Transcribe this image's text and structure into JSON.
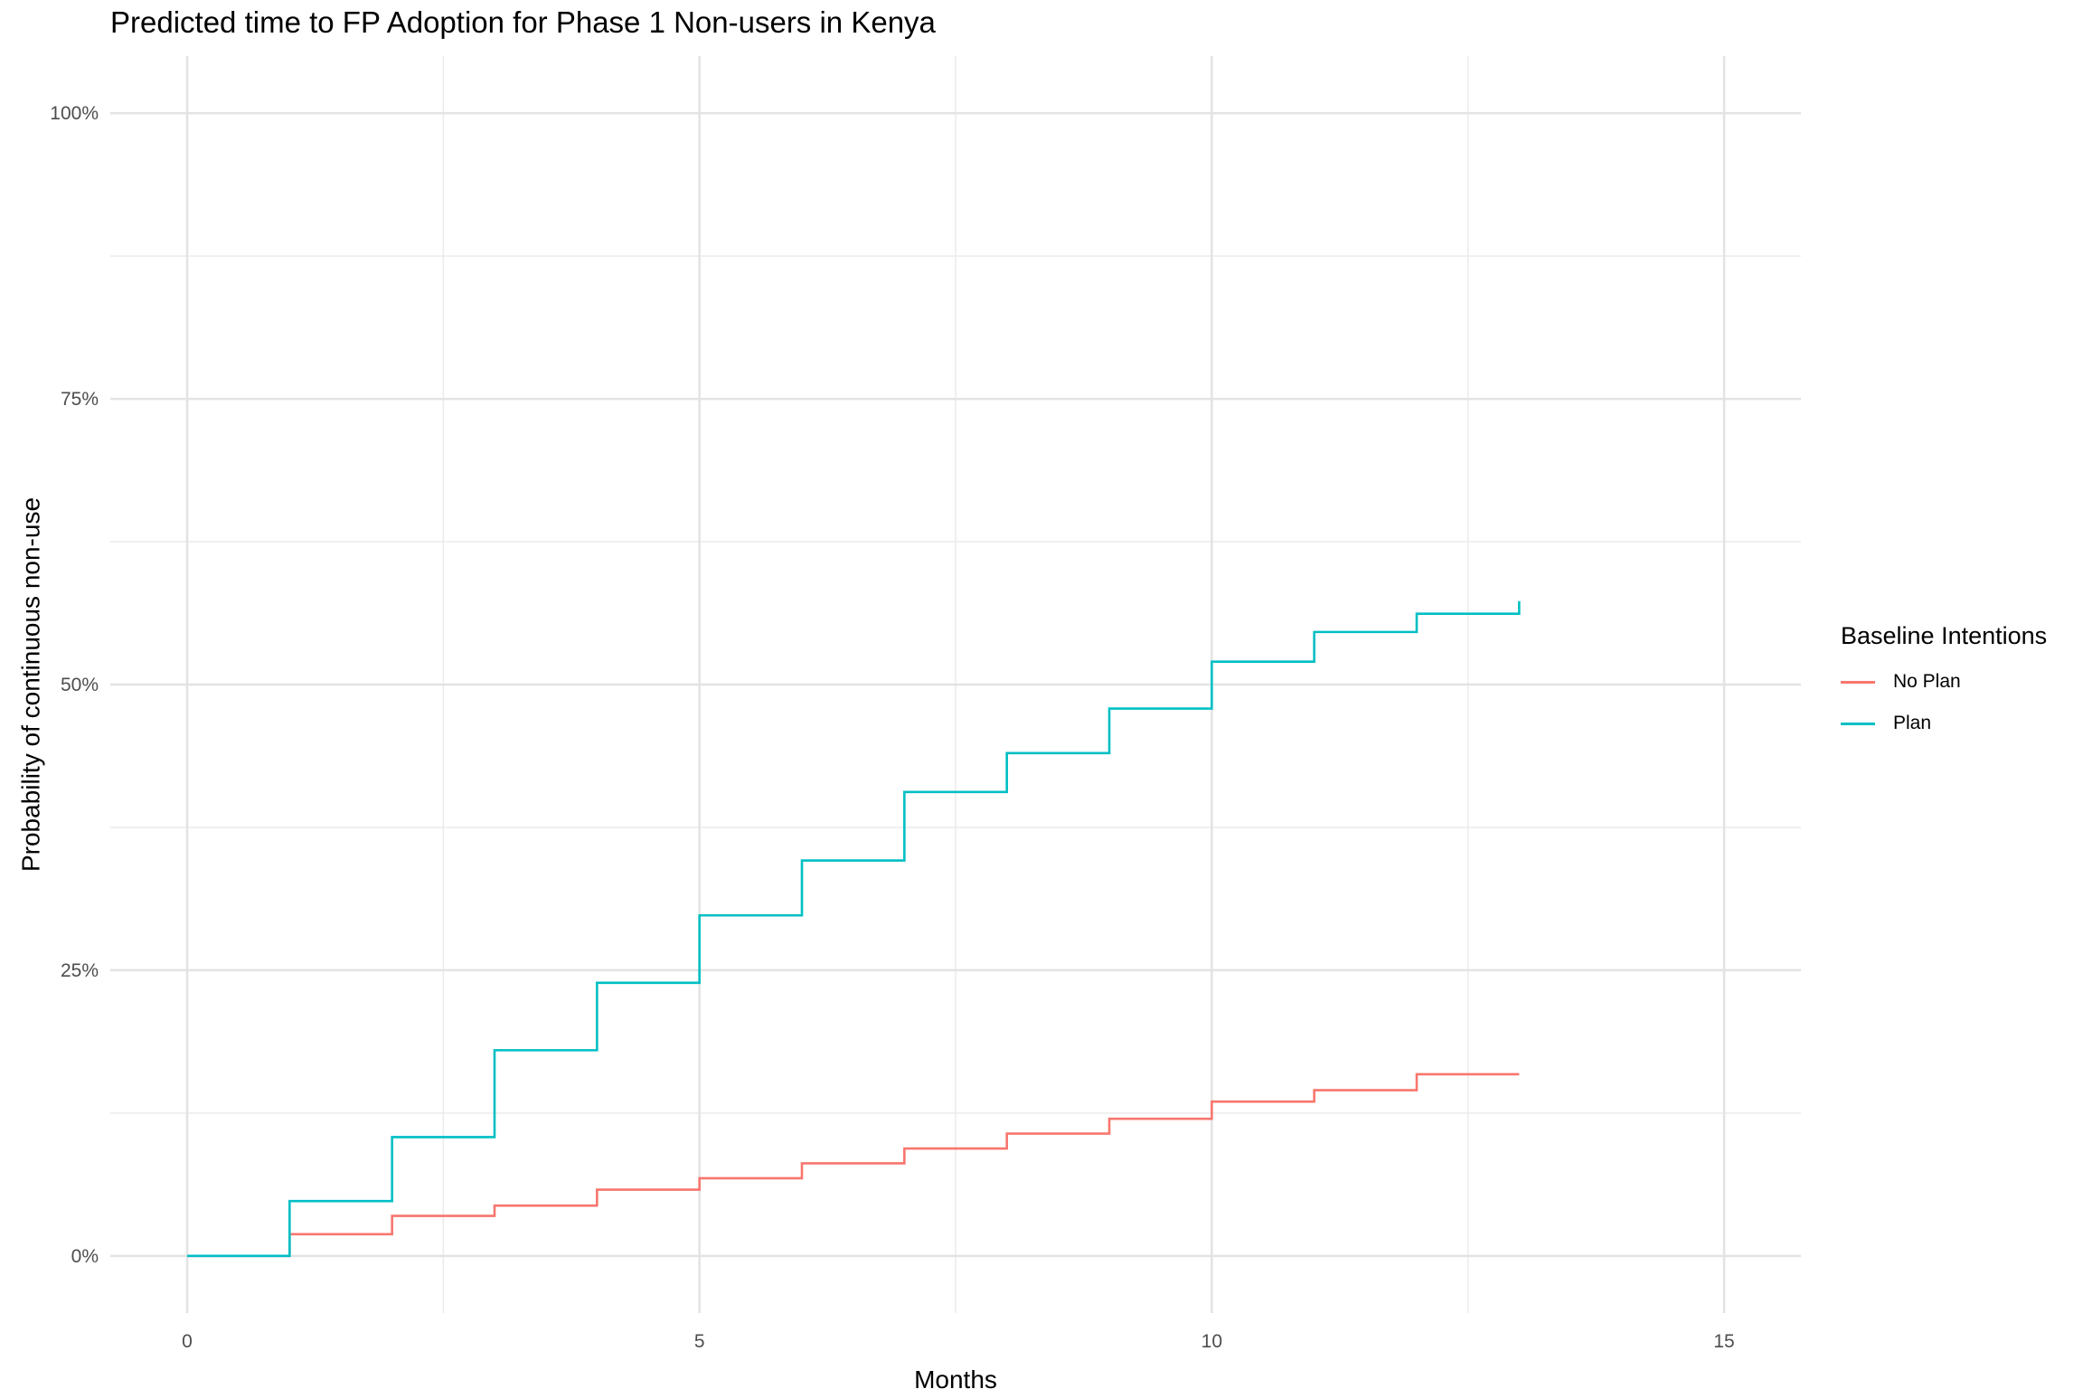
{
  "chart_data": {
    "type": "line",
    "step": true,
    "title": "Predicted time to FP Adoption for Phase 1 Non-users in Kenya",
    "xlabel": "Months",
    "ylabel": "Probability of continuous non-use",
    "xlim": [
      -0.75,
      15.75
    ],
    "ylim": [
      -0.05,
      1.05
    ],
    "x_ticks": [
      0,
      5,
      10,
      15
    ],
    "x_tick_labels": [
      "0",
      "5",
      "10",
      "15"
    ],
    "y_ticks": [
      0,
      0.25,
      0.5,
      0.75,
      1.0
    ],
    "y_tick_labels": [
      "0%",
      "25%",
      "50%",
      "75%",
      "100%"
    ],
    "grid": true,
    "legend": {
      "title": "Baseline Intentions",
      "position": "right"
    },
    "series": [
      {
        "name": "No Plan",
        "color": "#F8766D",
        "x": [
          0,
          1,
          2,
          3,
          4,
          5,
          6,
          7,
          8,
          9,
          10,
          11,
          12,
          13
        ],
        "y": [
          0.0,
          0.019,
          0.035,
          0.044,
          0.058,
          0.068,
          0.081,
          0.094,
          0.107,
          0.12,
          0.135,
          0.145,
          0.159,
          0.159
        ]
      },
      {
        "name": "Plan",
        "color": "#00BFC4",
        "x": [
          0,
          1,
          2,
          3,
          4,
          5,
          6,
          7,
          8,
          9,
          10,
          11,
          12,
          13
        ],
        "y": [
          0.0,
          0.048,
          0.104,
          0.18,
          0.239,
          0.298,
          0.346,
          0.406,
          0.44,
          0.479,
          0.52,
          0.546,
          0.562,
          0.573
        ]
      }
    ]
  }
}
